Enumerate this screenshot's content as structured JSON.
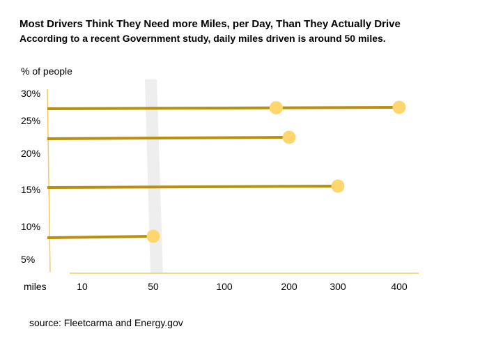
{
  "title": "Most Drivers Think They Need more Miles, per Day, Than They Actually Drive",
  "subtitle": "According to a recent Government study, daily miles driven is around 50 miles.",
  "source": "source:  Fleetcarma and Energy.gov",
  "colors": {
    "line": "#b8900a",
    "dot": "#fdd76e",
    "axis": "#f2cc5c",
    "band": "#eeeeee"
  },
  "chart_data": {
    "type": "dot-line",
    "ylabel": "% of people",
    "xlabel": "miles",
    "y_ticks": [
      "30%",
      "25%",
      "20%",
      "15%",
      "10%",
      "5%"
    ],
    "x_ticks": [
      "10",
      "50",
      "100",
      "200",
      "300",
      "400"
    ],
    "x_scale": "categorical-tick positions",
    "highlight_x": 50,
    "series": [
      {
        "percent": 27,
        "points_miles": [
          180,
          400
        ]
      },
      {
        "percent": 22,
        "points_miles": [
          200
        ]
      },
      {
        "percent": 15,
        "points_miles": [
          300
        ]
      },
      {
        "percent": 7.5,
        "points_miles": [
          50
        ]
      }
    ]
  }
}
